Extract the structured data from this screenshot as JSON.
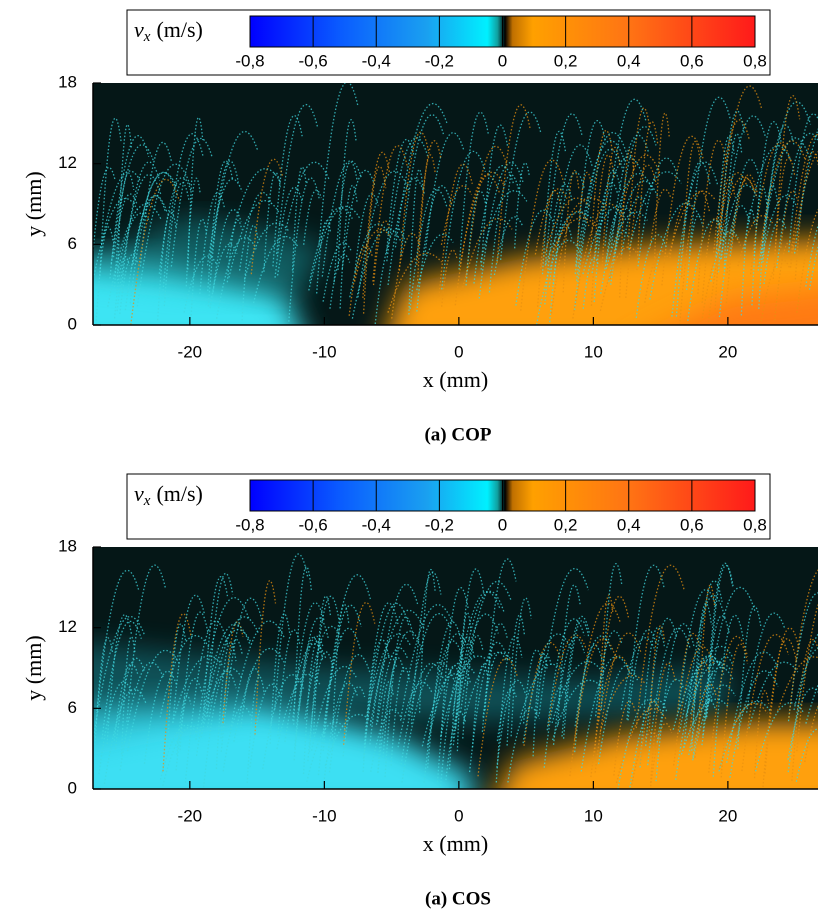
{
  "chart_data": [
    {
      "type": "field",
      "title": "(a) COP",
      "xlabel": "x (mm)",
      "ylabel": "y (mm)",
      "xlim": [
        -27.2,
        26.7
      ],
      "ylim": [
        0,
        18
      ],
      "xticks": [
        -20,
        -10,
        0,
        10,
        20
      ],
      "yticks": [
        0,
        6,
        12,
        18
      ],
      "colorbar": {
        "label": {
          "symbol": "v",
          "subscript": "x",
          "unit": "(m/s)"
        },
        "lim": [
          -0.8,
          0.8
        ],
        "ticks": [
          {
            "value": -0.8,
            "label": "-0,8"
          },
          {
            "value": -0.6,
            "label": "-0,6"
          },
          {
            "value": -0.4,
            "label": "-0,4"
          },
          {
            "value": -0.2,
            "label": "-0,2"
          },
          0,
          {
            "value": 0.2,
            "label": "0,2"
          },
          {
            "value": 0.4,
            "label": "0,4"
          },
          {
            "value": 0.6,
            "label": "0,6"
          },
          {
            "value": 0.8,
            "label": "0,8"
          }
        ]
      }
    },
    {
      "type": "field",
      "title": "(a) COS",
      "xlabel": "x (mm)",
      "ylabel": "y (mm)",
      "xlim": [
        -27.2,
        26.7
      ],
      "ylim": [
        0,
        18
      ],
      "xticks": [
        -20,
        -10,
        0,
        10,
        20
      ],
      "yticks": [
        0,
        6,
        12,
        18
      ],
      "colorbar": {
        "label": {
          "symbol": "v",
          "subscript": "x",
          "unit": "(m/s)"
        },
        "lim": [
          -0.8,
          0.8
        ],
        "ticks": [
          {
            "value": -0.8,
            "label": "-0,8"
          },
          {
            "value": -0.6,
            "label": "-0,6"
          },
          {
            "value": -0.4,
            "label": "-0,4"
          },
          {
            "value": -0.2,
            "label": "-0,2"
          },
          0,
          {
            "value": 0.2,
            "label": "0,2"
          },
          {
            "value": 0.4,
            "label": "0,4"
          },
          {
            "value": 0.6,
            "label": "0,6"
          },
          {
            "value": 0.8,
            "label": "0,8"
          }
        ]
      }
    }
  ]
}
